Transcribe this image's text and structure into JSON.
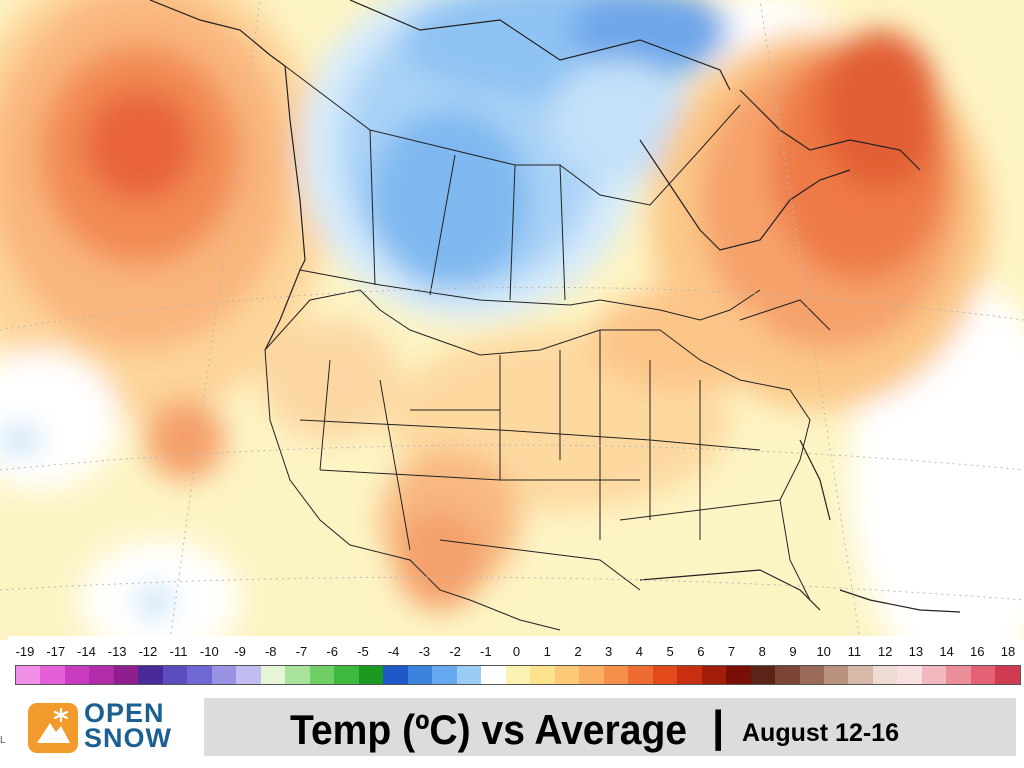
{
  "map": {
    "type": "temperature-anomaly-map",
    "region": "North America"
  },
  "legend": {
    "ticks": [
      "-19",
      "-17",
      "-14",
      "-13",
      "-12",
      "-11",
      "-10",
      "-9",
      "-8",
      "-7",
      "-6",
      "-5",
      "-4",
      "-3",
      "-2",
      "-1",
      "0",
      "1",
      "2",
      "3",
      "4",
      "5",
      "6",
      "7",
      "8",
      "9",
      "10",
      "11",
      "12",
      "13",
      "14",
      "16",
      "18"
    ],
    "colors": [
      "#f08ee8",
      "#e45fd8",
      "#c93bc0",
      "#b02ca8",
      "#8e1f8c",
      "#4a2a9a",
      "#5b4dbf",
      "#6f67d4",
      "#9a93e4",
      "#c2bdf0",
      "#e6f5d6",
      "#a9e29a",
      "#6fce66",
      "#3dba3d",
      "#1b9a22",
      "#1e57c8",
      "#3c83e0",
      "#66a9ef",
      "#9acdf5",
      "#ffffff",
      "#fbf3b4",
      "#fde28c",
      "#fdc979",
      "#f9ae62",
      "#f5904a",
      "#ee6b32",
      "#e24a1c",
      "#c82e10",
      "#a21d0a",
      "#7a0f05",
      "#5a2418",
      "#7a4535",
      "#9a6a58",
      "#b9917f",
      "#d7b9aa",
      "#eedcd3",
      "#f7dfe2",
      "#f2b8c0",
      "#ec8d9a",
      "#e46274",
      "#d13b51"
    ]
  },
  "logo": {
    "line1": "OPEN",
    "line2": "SNOW"
  },
  "title": {
    "main": "Temp (ºC) vs Average",
    "separator": "|",
    "dates": "August 12-16"
  },
  "side_mark": "L"
}
